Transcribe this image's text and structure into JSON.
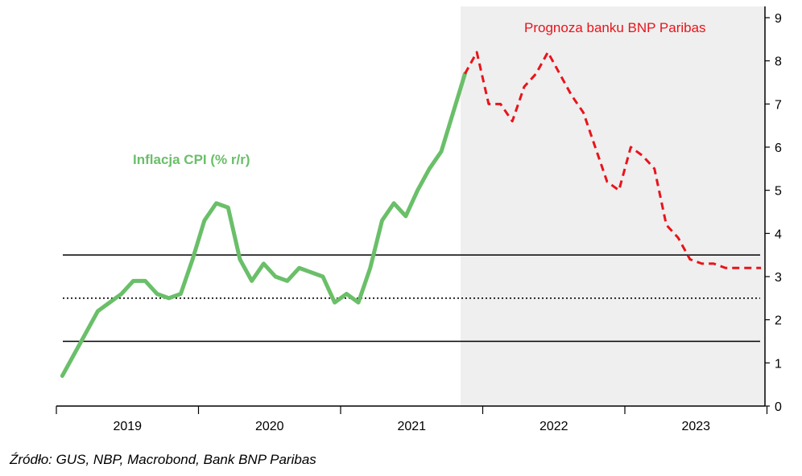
{
  "chart_data": {
    "type": "line",
    "xlabel": "",
    "ylabel": "",
    "ylim": [
      0,
      9
    ],
    "y_ticks": [
      0,
      1,
      2,
      3,
      4,
      5,
      6,
      7,
      8,
      9
    ],
    "y_axis_side": "right",
    "x_ticks": [
      "2019",
      "2020",
      "2021",
      "2022",
      "2023"
    ],
    "grid": false,
    "forecast_region_start": "2021-11",
    "series": [
      {
        "name": "Inflacja CPI (% r/r)",
        "color": "#6abf69",
        "style": "solid",
        "points": [
          [
            "2019-01",
            0.7
          ],
          [
            "2019-02",
            1.2
          ],
          [
            "2019-03",
            1.7
          ],
          [
            "2019-04",
            2.2
          ],
          [
            "2019-05",
            2.4
          ],
          [
            "2019-06",
            2.6
          ],
          [
            "2019-07",
            2.9
          ],
          [
            "2019-08",
            2.9
          ],
          [
            "2019-09",
            2.6
          ],
          [
            "2019-10",
            2.5
          ],
          [
            "2019-11",
            2.6
          ],
          [
            "2019-12",
            3.4
          ],
          [
            "2020-01",
            4.3
          ],
          [
            "2020-02",
            4.7
          ],
          [
            "2020-03",
            4.6
          ],
          [
            "2020-04",
            3.4
          ],
          [
            "2020-05",
            2.9
          ],
          [
            "2020-06",
            3.3
          ],
          [
            "2020-07",
            3.0
          ],
          [
            "2020-08",
            2.9
          ],
          [
            "2020-09",
            3.2
          ],
          [
            "2020-10",
            3.1
          ],
          [
            "2020-11",
            3.0
          ],
          [
            "2020-12",
            2.4
          ],
          [
            "2021-01",
            2.6
          ],
          [
            "2021-02",
            2.4
          ],
          [
            "2021-03",
            3.2
          ],
          [
            "2021-04",
            4.3
          ],
          [
            "2021-05",
            4.7
          ],
          [
            "2021-06",
            4.4
          ],
          [
            "2021-07",
            5.0
          ],
          [
            "2021-08",
            5.5
          ],
          [
            "2021-09",
            5.9
          ],
          [
            "2021-10",
            6.8
          ],
          [
            "2021-11",
            7.7
          ]
        ]
      },
      {
        "name": "Prognoza banku BNP Paribas",
        "color": "#e8141b",
        "style": "dashed",
        "points": [
          [
            "2021-11",
            7.7
          ],
          [
            "2021-12",
            8.2
          ],
          [
            "2022-01",
            7.0
          ],
          [
            "2022-02",
            7.0
          ],
          [
            "2022-03",
            6.6
          ],
          [
            "2022-04",
            7.4
          ],
          [
            "2022-05",
            7.7
          ],
          [
            "2022-06",
            8.2
          ],
          [
            "2022-07",
            7.7
          ],
          [
            "2022-08",
            7.2
          ],
          [
            "2022-09",
            6.8
          ],
          [
            "2022-10",
            6.0
          ],
          [
            "2022-11",
            5.2
          ],
          [
            "2022-12",
            5.0
          ],
          [
            "2023-01",
            6.0
          ],
          [
            "2023-02",
            5.8
          ],
          [
            "2023-03",
            5.5
          ],
          [
            "2023-04",
            4.2
          ],
          [
            "2023-05",
            3.9
          ],
          [
            "2023-06",
            3.4
          ],
          [
            "2023-07",
            3.3
          ],
          [
            "2023-08",
            3.3
          ],
          [
            "2023-09",
            3.2
          ],
          [
            "2023-10",
            3.2
          ],
          [
            "2023-11",
            3.2
          ],
          [
            "2023-12",
            3.2
          ]
        ]
      }
    ],
    "reference_lines": [
      {
        "value": 3.5,
        "style": "solid",
        "color": "#000000"
      },
      {
        "value": 2.5,
        "style": "dotted",
        "color": "#000000"
      },
      {
        "value": 1.5,
        "style": "solid",
        "color": "#000000"
      }
    ]
  },
  "source": "Źródło: GUS, NBP, Macrobond, Bank BNP Paribas"
}
